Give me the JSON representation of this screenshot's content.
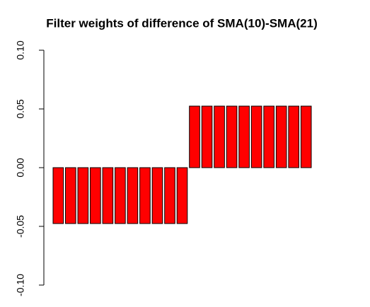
{
  "chart_data": {
    "type": "bar",
    "title": "Filter weights of difference of SMA(10)-SMA(21)",
    "values": [
      -0.0476,
      -0.0476,
      -0.0476,
      -0.0476,
      -0.0476,
      -0.0476,
      -0.0476,
      -0.0476,
      -0.0476,
      -0.0476,
      -0.0476,
      0.0524,
      0.0524,
      0.0524,
      0.0524,
      0.0524,
      0.0524,
      0.0524,
      0.0524,
      0.0524,
      0.0524
    ],
    "color": "#ff0000",
    "ylim": [
      -0.1,
      0.1
    ],
    "yticks": [
      {
        "value": -0.1,
        "label": "-0.10"
      },
      {
        "value": -0.05,
        "label": "-0.05"
      },
      {
        "value": 0,
        "label": "0.00"
      },
      {
        "value": 0.05,
        "label": "0.05"
      },
      {
        "value": 0.1,
        "label": "0.10"
      }
    ]
  }
}
